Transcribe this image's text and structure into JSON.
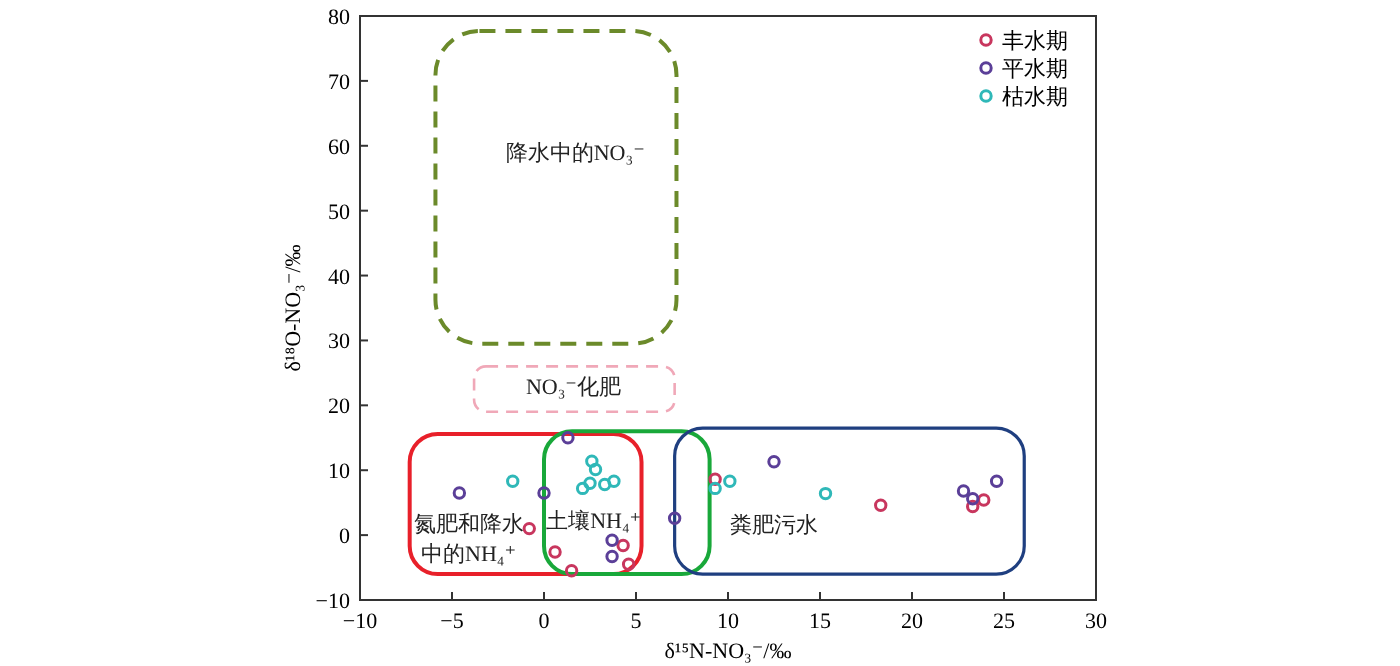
{
  "chart_data": {
    "type": "scatter",
    "xlabel": "δ¹⁵N-NO₃⁻/‰",
    "ylabel": "δ¹⁸O-NO₃⁻/‰",
    "xlim": [
      -10,
      30
    ],
    "ylim": [
      -10,
      80
    ],
    "xticks": [
      -10,
      -5,
      0,
      5,
      10,
      15,
      20,
      25,
      30
    ],
    "yticks": [
      -10,
      0,
      10,
      20,
      30,
      40,
      50,
      60,
      70,
      80
    ],
    "legend": "top right",
    "marker": "circle",
    "grid": false,
    "series": [
      {
        "name": "丰水期",
        "color": "#c8365e",
        "x": [
          -0.8,
          0.6,
          1.5,
          4.3,
          4.6,
          9.3,
          18.3,
          23.3,
          23.9
        ],
        "values": [
          1.0,
          -2.6,
          -5.5,
          -1.6,
          -4.5,
          8.6,
          4.6,
          4.4,
          5.4
        ]
      },
      {
        "name": "平水期",
        "color": "#5b3f98",
        "x": [
          -4.6,
          0.0,
          1.3,
          3.7,
          3.7,
          7.1,
          12.5,
          22.8,
          23.3,
          24.6
        ],
        "values": [
          6.5,
          6.5,
          15.0,
          -0.8,
          -3.3,
          2.6,
          11.3,
          6.8,
          5.6,
          8.3
        ]
      },
      {
        "name": "枯水期",
        "color": "#2fb8b8",
        "x": [
          -1.7,
          2.6,
          2.8,
          2.5,
          2.1,
          3.3,
          3.8,
          9.3,
          10.1,
          15.3
        ],
        "values": [
          8.3,
          11.4,
          10.1,
          8.0,
          7.2,
          7.8,
          8.3,
          7.2,
          8.3,
          6.4
        ]
      }
    ],
    "annotations": [
      "降水中的NO₃⁻",
      "NO₃⁻化肥",
      "氮肥和降水中的NH₄⁺",
      "土壤NH₄⁺",
      "粪肥污水"
    ]
  }
}
